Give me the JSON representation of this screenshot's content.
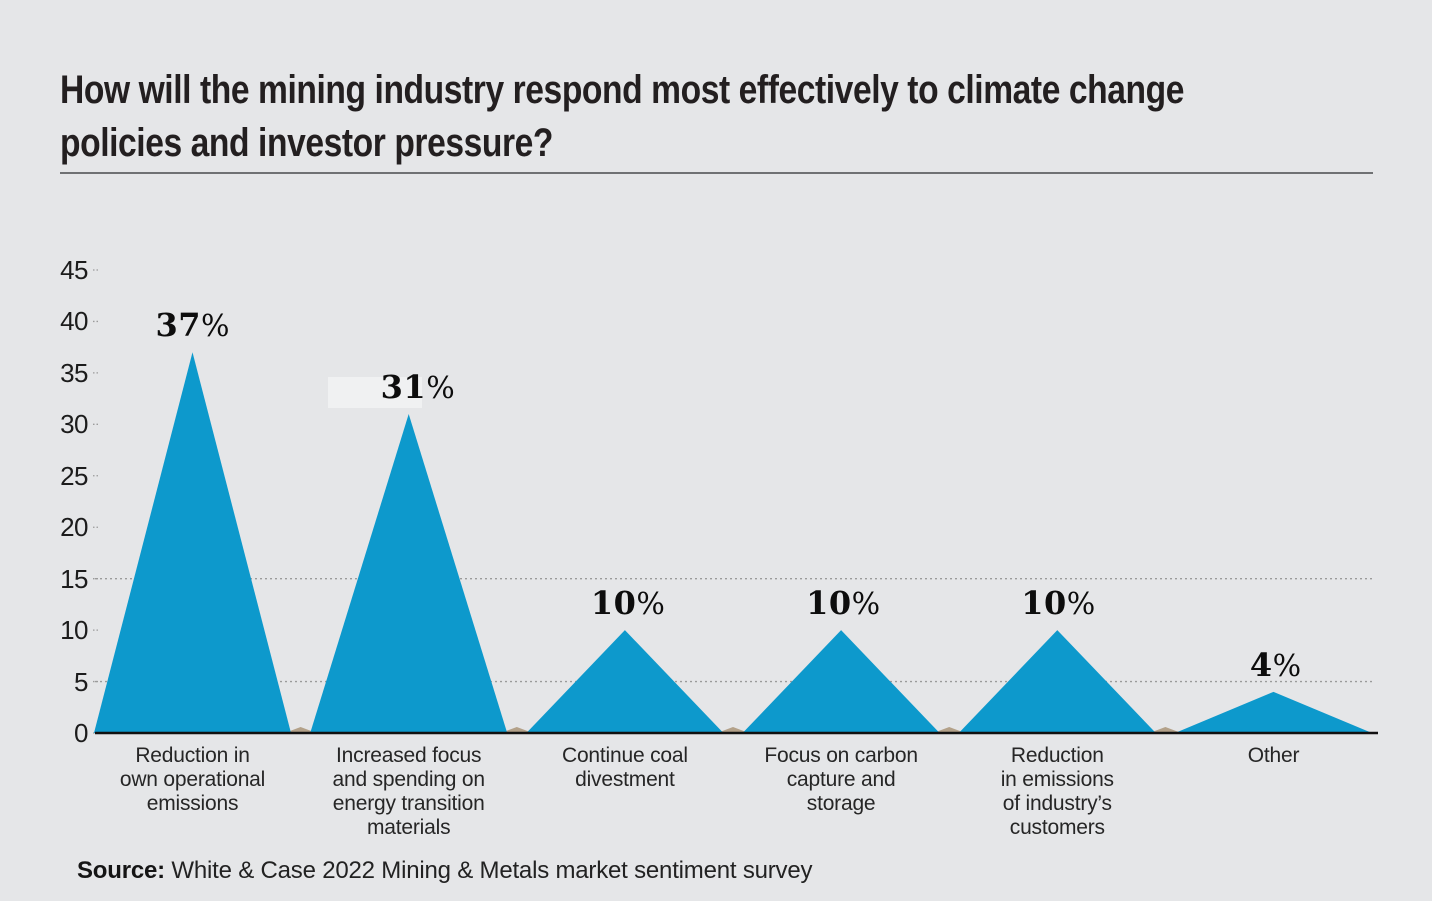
{
  "page": {
    "background": "#e5e6e8"
  },
  "header": {
    "title": "How will the mining industry respond most effectively to climate change policies and investor pressure?"
  },
  "chart_data": {
    "type": "bar",
    "style": "triangle-peaks",
    "categories": [
      "Reduction in\nown operational\nemissions",
      "Increased focus\nand spending on\nenergy transition\nmaterials",
      "Continue coal\ndivestment",
      "Focus on carbon\ncapture and\nstorage",
      "Reduction\nin emissions\nof industry’s\ncustomers",
      "Other"
    ],
    "values": [
      37,
      31,
      10,
      10,
      10,
      4
    ],
    "value_labels": [
      "37%",
      "31%",
      "10%",
      "10%",
      "10%",
      "4%"
    ],
    "label_highlight_index": 1,
    "xlabel": "",
    "ylabel": "",
    "ylim": [
      0,
      45
    ],
    "yticks": [
      "45",
      "40",
      "35",
      "30",
      "25",
      "20",
      "15",
      "10",
      "5",
      "0"
    ],
    "gridlines_at": [
      15,
      5
    ],
    "grid": "dotted",
    "legend": "none",
    "bar_color": "#0d99cc",
    "baseline_color": "#111111",
    "gridline_color": "#9b9b9b",
    "gap_wedge_color": "#b3a189"
  },
  "footer": {
    "source_label": "Source:",
    "source_text": " White & Case 2022 Mining & Metals market sentiment survey"
  }
}
